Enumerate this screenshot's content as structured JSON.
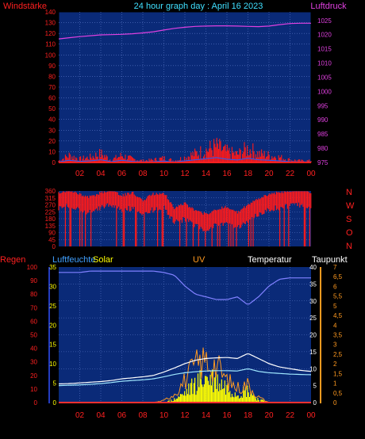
{
  "title": "24 hour graph day : April 16 2023",
  "colors": {
    "panel_bg": "#0a2a78",
    "grid": "#5a78c8",
    "wind": "#ff1a1a",
    "wind_avg": "#2060ff",
    "pressure": "#e040e0",
    "humidity": "#8080ff",
    "solar": "#ffff00",
    "uv": "#ff9a20",
    "temperature": "#ffffff",
    "dewpoint": "#a0e8ff",
    "rain": "#ff3030",
    "left_axis_text": "#ff2020",
    "cyan_text": "#40e0ff",
    "white_text": "#ffffff",
    "orange_text": "#ff9a20"
  },
  "hour_labels": [
    "02",
    "04",
    "06",
    "08",
    "10",
    "12",
    "14",
    "16",
    "18",
    "20",
    "22",
    "00"
  ],
  "chart_data": [
    {
      "type": "line",
      "name_left": "Windstärke",
      "name_right": "Luftdruck",
      "left_ticks": [
        "0",
        "10",
        "20",
        "30",
        "40",
        "50",
        "60",
        "70",
        "80",
        "90",
        "100",
        "110",
        "120",
        "130",
        "140"
      ],
      "right_ticks": [
        "975",
        "980",
        "985",
        "990",
        "995",
        "1000",
        "1005",
        "1010",
        "1015",
        "1020",
        "1025"
      ],
      "left_ylim": [
        0,
        140
      ],
      "right_ylim": [
        975,
        1028
      ],
      "x": [
        0,
        1,
        2,
        3,
        4,
        5,
        6,
        7,
        8,
        9,
        10,
        11,
        12,
        13,
        14,
        15,
        16,
        17,
        18,
        19,
        20,
        21,
        22,
        23,
        24
      ],
      "series": [
        {
          "name": "Luftdruck",
          "axis": "right",
          "values": [
            1018.5,
            1018.9,
            1019.3,
            1019.6,
            1019.9,
            1020.0,
            1020.1,
            1020.3,
            1020.6,
            1021.0,
            1021.6,
            1022.2,
            1022.6,
            1022.9,
            1023.0,
            1023.1,
            1023.1,
            1023.0,
            1022.9,
            1022.8,
            1023.0,
            1023.5,
            1023.9,
            1024.0,
            1024.0
          ]
        },
        {
          "name": "Windstärke",
          "axis": "left",
          "values": [
            2,
            8,
            4,
            6,
            10,
            3,
            8,
            4,
            2,
            3,
            5,
            2,
            6,
            10,
            14,
            18,
            12,
            9,
            16,
            10,
            8,
            6,
            3,
            2,
            2
          ]
        }
      ]
    },
    {
      "type": "scatter",
      "name": "Windrichtung",
      "left_ticks": [
        "0",
        "45",
        "90",
        "135",
        "180",
        "225",
        "270",
        "315",
        "360"
      ],
      "right_labels": [
        "N",
        "W",
        "S",
        "O",
        "N"
      ],
      "ylim": [
        0,
        360
      ],
      "x": [
        0,
        1,
        2,
        3,
        4,
        5,
        6,
        7,
        8,
        9,
        10,
        11,
        12,
        13,
        14,
        15,
        16,
        17,
        18,
        19,
        20,
        21,
        22,
        23,
        24
      ],
      "values": [
        300,
        310,
        290,
        270,
        300,
        320,
        280,
        300,
        250,
        290,
        300,
        200,
        230,
        180,
        160,
        190,
        210,
        170,
        220,
        260,
        290,
        300,
        310,
        320,
        300
      ]
    },
    {
      "type": "line",
      "legend": [
        "Regen",
        "Luftfeuchte",
        "Solar",
        "UV",
        "Temperatur",
        "Taupunkt"
      ],
      "rain_ticks": [
        "0",
        "10",
        "20",
        "30",
        "40",
        "50",
        "60",
        "70",
        "80",
        "90",
        "100"
      ],
      "humidity_ticks": [
        "0",
        "5",
        "10",
        "15",
        "20",
        "25",
        "30",
        "35"
      ],
      "temp_ticks": [
        "0",
        "5",
        "10",
        "15",
        "20",
        "25",
        "30",
        "35",
        "40"
      ],
      "uv_ticks": [
        "0",
        "0,5",
        "1",
        "1,5",
        "2",
        "2,5",
        "3",
        "3,5",
        "4",
        "4,5",
        "5",
        "5,5",
        "6",
        "6,5",
        "7"
      ],
      "x": [
        0,
        1,
        2,
        3,
        4,
        5,
        6,
        7,
        8,
        9,
        10,
        11,
        12,
        13,
        14,
        15,
        16,
        17,
        18,
        19,
        20,
        21,
        22,
        23,
        24
      ],
      "series": [
        {
          "name": "Luftfeuchte",
          "values": [
            96,
            96,
            96,
            97,
            97,
            97,
            97,
            97,
            97,
            97,
            96,
            94,
            86,
            80,
            78,
            76,
            76,
            78,
            72,
            78,
            86,
            91,
            92,
            92,
            92
          ]
        },
        {
          "name": "Temperatur",
          "values": [
            5.5,
            5.6,
            5.8,
            6.0,
            6.2,
            6.5,
            7.0,
            7.3,
            7.6,
            8.0,
            9.0,
            10.2,
            11.5,
            12.5,
            13.0,
            13.2,
            13.3,
            13.0,
            14.5,
            13.0,
            11.5,
            10.5,
            10.0,
            9.5,
            9.2
          ]
        },
        {
          "name": "Taupunkt",
          "values": [
            5.0,
            5.1,
            5.2,
            5.4,
            5.6,
            5.9,
            6.3,
            6.5,
            6.7,
            7.0,
            7.6,
            8.3,
            8.8,
            9.1,
            9.3,
            9.4,
            9.4,
            9.3,
            10.0,
            9.2,
            8.8,
            8.6,
            8.4,
            8.3,
            8.2
          ]
        },
        {
          "name": "Solar",
          "values": [
            0,
            0,
            0,
            0,
            0,
            0,
            0,
            0,
            0,
            0,
            0,
            1,
            3,
            6,
            8,
            7,
            5,
            3,
            4,
            1,
            0,
            0,
            0,
            0,
            0
          ]
        },
        {
          "name": "UV",
          "values": [
            0,
            0,
            0,
            0,
            0,
            0,
            0,
            0,
            0,
            0,
            0.1,
            0.5,
            1.2,
            2.0,
            2.3,
            2.0,
            1.2,
            0.8,
            1.0,
            0.3,
            0,
            0,
            0,
            0,
            0
          ]
        }
      ]
    }
  ]
}
